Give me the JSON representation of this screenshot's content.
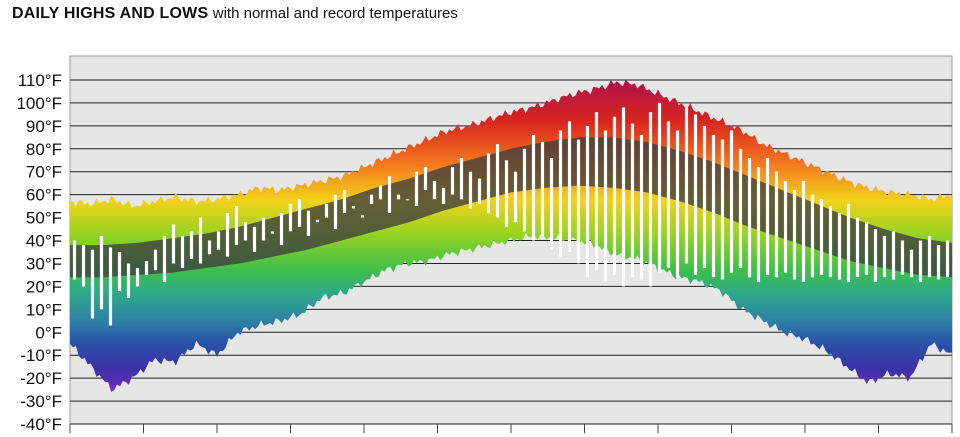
{
  "header": {
    "title_main": "DAILY HIGHS AND LOWS",
    "title_sub": "with normal and record temperatures"
  },
  "chart_data": {
    "type": "area",
    "title": "DAILY HIGHS AND LOWS",
    "subtitle": "with normal and record temperatures",
    "xlabel": "",
    "ylabel": "",
    "ylim": [
      -40,
      115
    ],
    "yticks": [
      -40,
      -30,
      -20,
      -10,
      0,
      10,
      20,
      30,
      40,
      50,
      60,
      70,
      80,
      90,
      100,
      110
    ],
    "ytick_labels": [
      "-40°F",
      "-30°F",
      "-20°F",
      "-10°F",
      "0°F",
      "10°F",
      "20°F",
      "30°F",
      "40°F",
      "50°F",
      "60°F",
      "70°F",
      "80°F",
      "90°F",
      "100°F",
      "110°F"
    ],
    "x_days": 365,
    "x_month_ticks": 12,
    "grid": true,
    "record_high": [
      57,
      56,
      58,
      55,
      57,
      59,
      57,
      58,
      60,
      63,
      62,
      64,
      66,
      68,
      72,
      76,
      80,
      84,
      88,
      90,
      93,
      96,
      98,
      101,
      104,
      106,
      109,
      108,
      104,
      100,
      96,
      92,
      88,
      82,
      78,
      74,
      70,
      66,
      63,
      61,
      60,
      58,
      60
    ],
    "record_low": [
      -5,
      -15,
      -25,
      -20,
      -12,
      -13,
      -5,
      -10,
      0,
      3,
      5,
      8,
      15,
      17,
      22,
      27,
      30,
      31,
      34,
      36,
      38,
      40,
      42,
      41,
      40,
      38,
      34,
      32,
      28,
      24,
      22,
      18,
      10,
      5,
      0,
      -3,
      -8,
      -15,
      -22,
      -18,
      -20,
      -5,
      -10
    ],
    "normal_high": [
      38,
      38,
      39,
      41,
      43,
      46,
      50,
      54,
      58,
      63,
      67,
      72,
      76,
      80,
      83,
      85,
      85,
      83,
      79,
      74,
      68,
      62,
      56,
      50,
      45,
      41,
      39
    ],
    "normal_low": [
      24,
      24,
      25,
      26,
      28,
      30,
      33,
      36,
      40,
      44,
      48,
      53,
      57,
      61,
      63,
      64,
      63,
      61,
      57,
      52,
      46,
      41,
      36,
      31,
      28,
      25,
      24
    ],
    "daily_high": [
      40,
      38,
      36,
      42,
      37,
      35,
      30,
      28,
      31,
      36,
      42,
      47,
      42,
      44,
      50,
      40,
      44,
      52,
      55,
      48,
      46,
      50,
      44,
      52,
      56,
      58,
      53,
      49,
      56,
      60,
      62,
      55,
      51,
      60,
      64,
      68,
      60,
      58,
      70,
      72,
      66,
      63,
      72,
      76,
      70,
      67,
      78,
      82,
      75,
      70,
      80,
      86,
      83,
      76,
      88,
      92,
      84,
      90,
      96,
      88,
      94,
      98,
      91,
      86,
      96,
      100,
      92,
      88,
      98,
      95,
      90,
      86,
      84,
      88,
      80,
      76,
      72,
      76,
      70,
      66,
      62,
      66,
      60,
      58,
      55,
      52,
      56,
      50,
      48,
      45,
      42,
      44,
      40,
      36,
      40,
      42,
      38,
      40
    ],
    "daily_low": [
      23,
      20,
      6,
      10,
      3,
      18,
      15,
      20,
      25,
      27,
      22,
      30,
      28,
      32,
      30,
      34,
      36,
      33,
      38,
      40,
      35,
      40,
      43,
      38,
      44,
      46,
      42,
      48,
      50,
      45,
      52,
      54,
      50,
      56,
      58,
      52,
      58,
      60,
      55,
      62,
      58,
      56,
      60,
      58,
      54,
      56,
      52,
      50,
      46,
      48,
      44,
      40,
      42,
      36,
      33,
      35,
      30,
      24,
      27,
      22,
      25,
      20,
      24,
      23,
      20,
      26,
      28,
      24,
      30,
      25,
      28,
      24,
      23,
      26,
      28,
      24,
      22,
      25,
      24,
      26,
      23,
      22,
      24,
      25,
      24,
      23,
      22,
      24,
      25,
      22,
      24,
      23,
      25,
      24,
      22,
      24,
      23,
      24
    ]
  }
}
